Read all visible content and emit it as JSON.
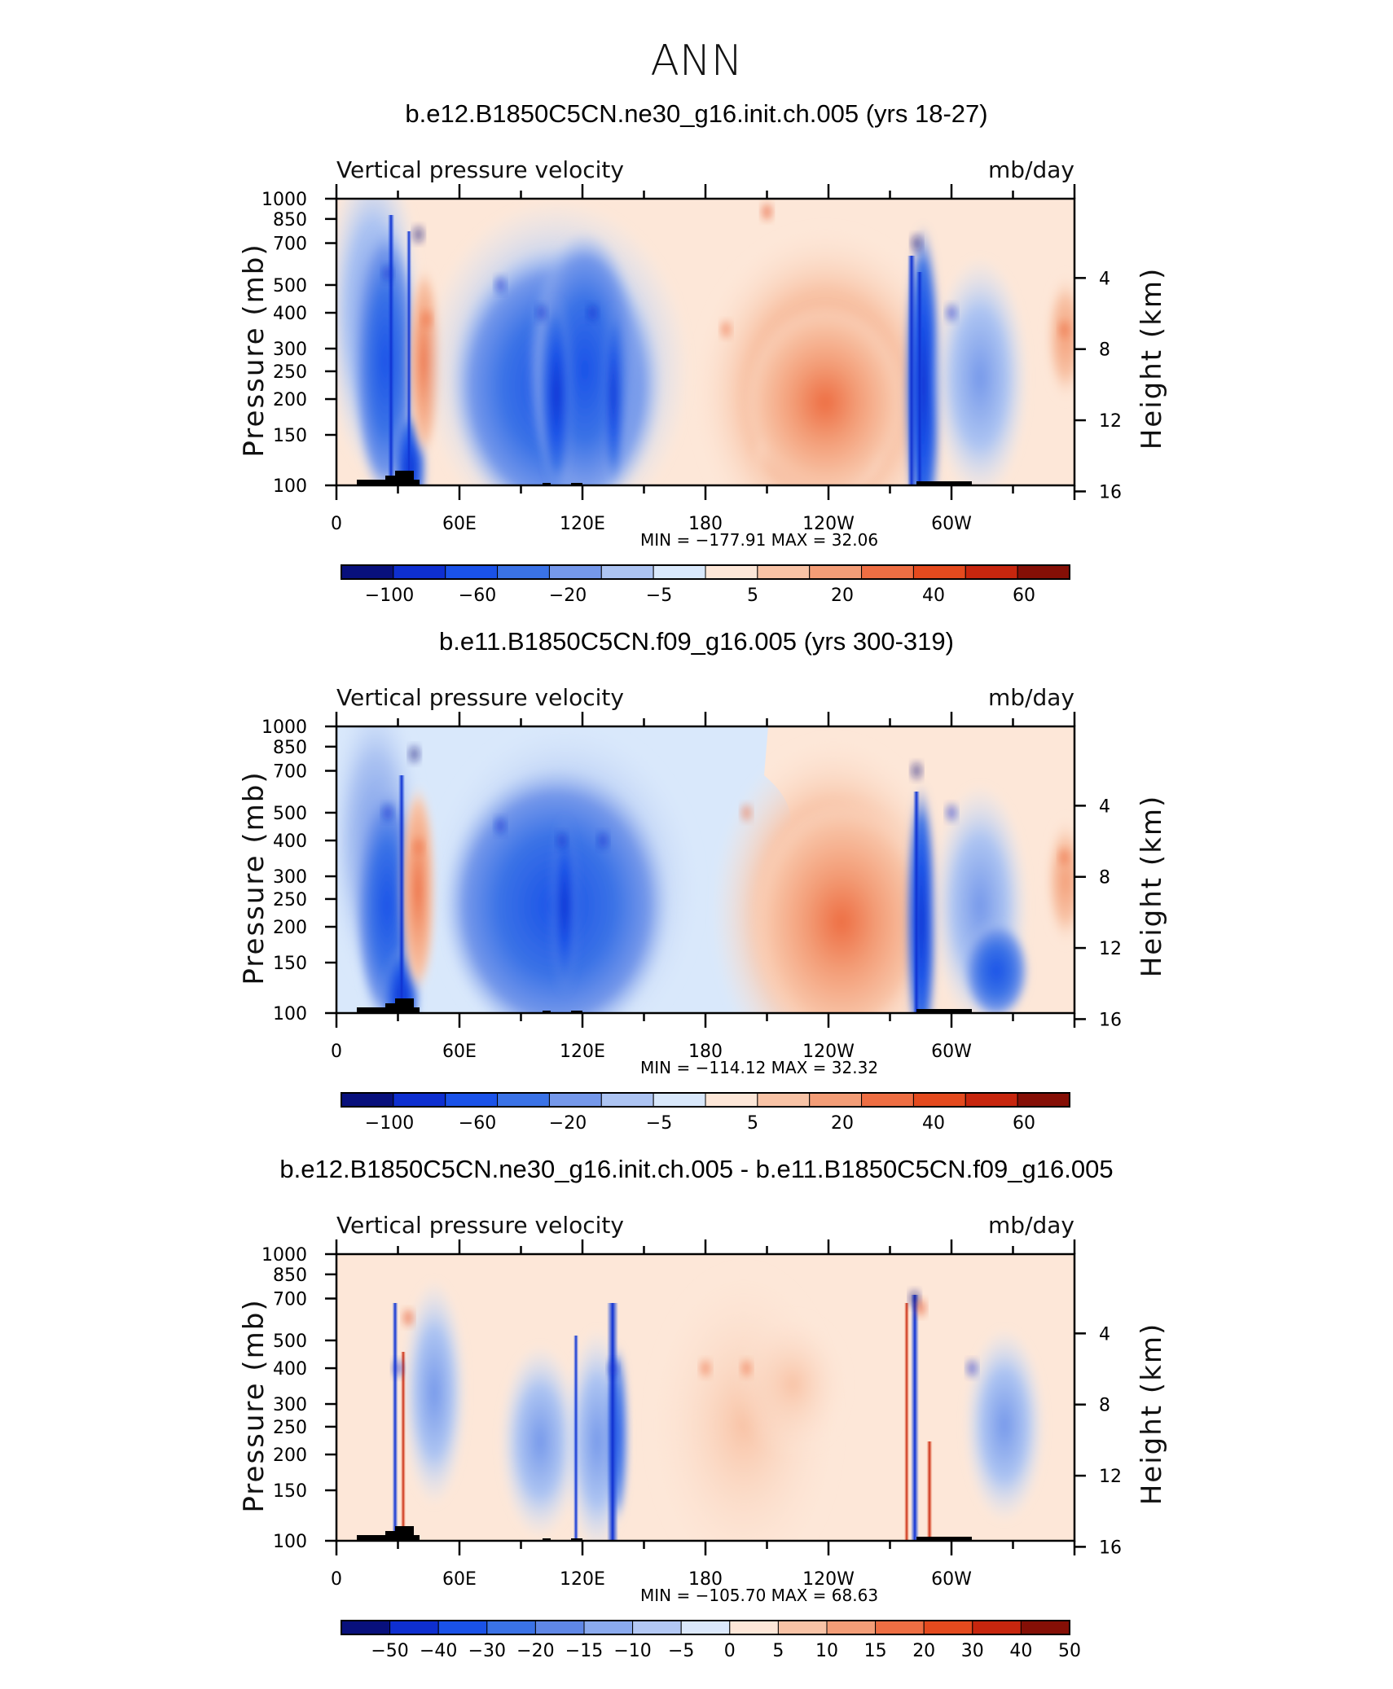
{
  "figure_title": "ANN",
  "colors": {
    "main_scale": [
      "#08107c",
      "#0e2fd0",
      "#1a52e8",
      "#3a72e6",
      "#7598ea",
      "#adc4f2",
      "#d9e8fb",
      "#fde7d8",
      "#f8c3a6",
      "#f39d77",
      "#ee6e43",
      "#e44a1e",
      "#c7260e",
      "#850f06"
    ],
    "diff_scale": [
      "#08107c",
      "#0e2fd0",
      "#1a52e8",
      "#3a72e6",
      "#5f87e6",
      "#8aaaee",
      "#b3c8f4",
      "#dbe8fb",
      "#fde7d8",
      "#f8c3a6",
      "#f39d77",
      "#ee6e43",
      "#e44a1e",
      "#c7260e",
      "#850f06"
    ]
  },
  "chart_data": [
    {
      "type": "heatmap",
      "title": "b.e12.B1850C5CN.ne30_g16.init.ch.005 (yrs 18-27)",
      "left_label": "Vertical pressure velocity",
      "right_label": "mb/day",
      "ylabel": "Pressure (mb)",
      "y2label": "Height (km)",
      "xticks": [
        "0",
        "60E",
        "120E",
        "180",
        "120W",
        "60W"
      ],
      "yticks": [
        "100",
        "150",
        "200",
        "250",
        "300",
        "400",
        "500",
        "700",
        "850",
        "1000"
      ],
      "y2ticks": [
        "16",
        "12",
        "8",
        "4"
      ],
      "stats": "MIN = −177.91   MAX =   32.06",
      "colorbar_labels": [
        "−100",
        "−60",
        "−20",
        "−5",
        "5",
        "20",
        "40",
        "60"
      ],
      "x_range": [
        0,
        360
      ],
      "y_range": [
        1000,
        100
      ],
      "y_scale": "log",
      "fields": [
        {
          "lon": 25,
          "p": 550,
          "value": -40
        },
        {
          "lon": 40,
          "p": 750,
          "value": -120
        },
        {
          "lon": 44,
          "p": 380,
          "value": 25
        },
        {
          "lon": 80,
          "p": 500,
          "value": -40
        },
        {
          "lon": 100,
          "p": 400,
          "value": -60
        },
        {
          "lon": 125,
          "p": 400,
          "value": -55
        },
        {
          "lon": 190,
          "p": 350,
          "value": 15
        },
        {
          "lon": 210,
          "p": 900,
          "value": 30
        },
        {
          "lon": 283,
          "p": 700,
          "value": -178
        },
        {
          "lon": 300,
          "p": 400,
          "value": -40
        },
        {
          "lon": 355,
          "p": 350,
          "value": 15
        }
      ]
    },
    {
      "type": "heatmap",
      "title": "b.e11.B1850C5CN.f09_g16.005 (yrs 300-319)",
      "left_label": "Vertical pressure velocity",
      "right_label": "mb/day",
      "ylabel": "Pressure (mb)",
      "y2label": "Height (km)",
      "xticks": [
        "0",
        "60E",
        "120E",
        "180",
        "120W",
        "60W"
      ],
      "yticks": [
        "100",
        "150",
        "200",
        "250",
        "300",
        "400",
        "500",
        "700",
        "850",
        "1000"
      ],
      "y2ticks": [
        "16",
        "12",
        "8",
        "4"
      ],
      "stats": "MIN = −114.12   MAX =   32.32",
      "colorbar_labels": [
        "−100",
        "−60",
        "−20",
        "−5",
        "5",
        "20",
        "40",
        "60"
      ],
      "x_range": [
        0,
        360
      ],
      "y_range": [
        1000,
        100
      ],
      "y_scale": "log",
      "fields": [
        {
          "lon": 25,
          "p": 500,
          "value": -40
        },
        {
          "lon": 38,
          "p": 800,
          "value": -100
        },
        {
          "lon": 40,
          "p": 380,
          "value": 25
        },
        {
          "lon": 80,
          "p": 450,
          "value": -45
        },
        {
          "lon": 110,
          "p": 400,
          "value": -55
        },
        {
          "lon": 130,
          "p": 400,
          "value": -50
        },
        {
          "lon": 200,
          "p": 500,
          "value": 20
        },
        {
          "lon": 283,
          "p": 700,
          "value": -114
        },
        {
          "lon": 300,
          "p": 500,
          "value": -40
        },
        {
          "lon": 355,
          "p": 350,
          "value": 15
        }
      ]
    },
    {
      "type": "heatmap",
      "title": "b.e12.B1850C5CN.ne30_g16.init.ch.005 - b.e11.B1850C5CN.f09_g16.005",
      "left_label": "Vertical pressure velocity",
      "right_label": "mb/day",
      "ylabel": "Pressure (mb)",
      "y2label": "Height (km)",
      "xticks": [
        "0",
        "60E",
        "120E",
        "180",
        "120W",
        "60W"
      ],
      "yticks": [
        "100",
        "150",
        "200",
        "250",
        "300",
        "400",
        "500",
        "700",
        "850",
        "1000"
      ],
      "y2ticks": [
        "16",
        "12",
        "8",
        "4"
      ],
      "stats": "MIN = −105.70   MAX =   68.63",
      "colorbar_labels": [
        "−50",
        "−40",
        "−30",
        "−20",
        "−15",
        "−10",
        "−5",
        "0",
        "5",
        "10",
        "15",
        "20",
        "30",
        "40",
        "50"
      ],
      "x_range": [
        0,
        360
      ],
      "y_range": [
        1000,
        100
      ],
      "y_scale": "log",
      "fields": [
        {
          "lon": 30,
          "p": 400,
          "value": -10
        },
        {
          "lon": 35,
          "p": 600,
          "value": 30
        },
        {
          "lon": 135,
          "p": 400,
          "value": -40
        },
        {
          "lon": 180,
          "p": 400,
          "value": 5
        },
        {
          "lon": 200,
          "p": 400,
          "value": 8
        },
        {
          "lon": 282,
          "p": 700,
          "value": -105.7
        },
        {
          "lon": 285,
          "p": 650,
          "value": 68.63
        },
        {
          "lon": 310,
          "p": 400,
          "value": -10
        }
      ]
    }
  ]
}
